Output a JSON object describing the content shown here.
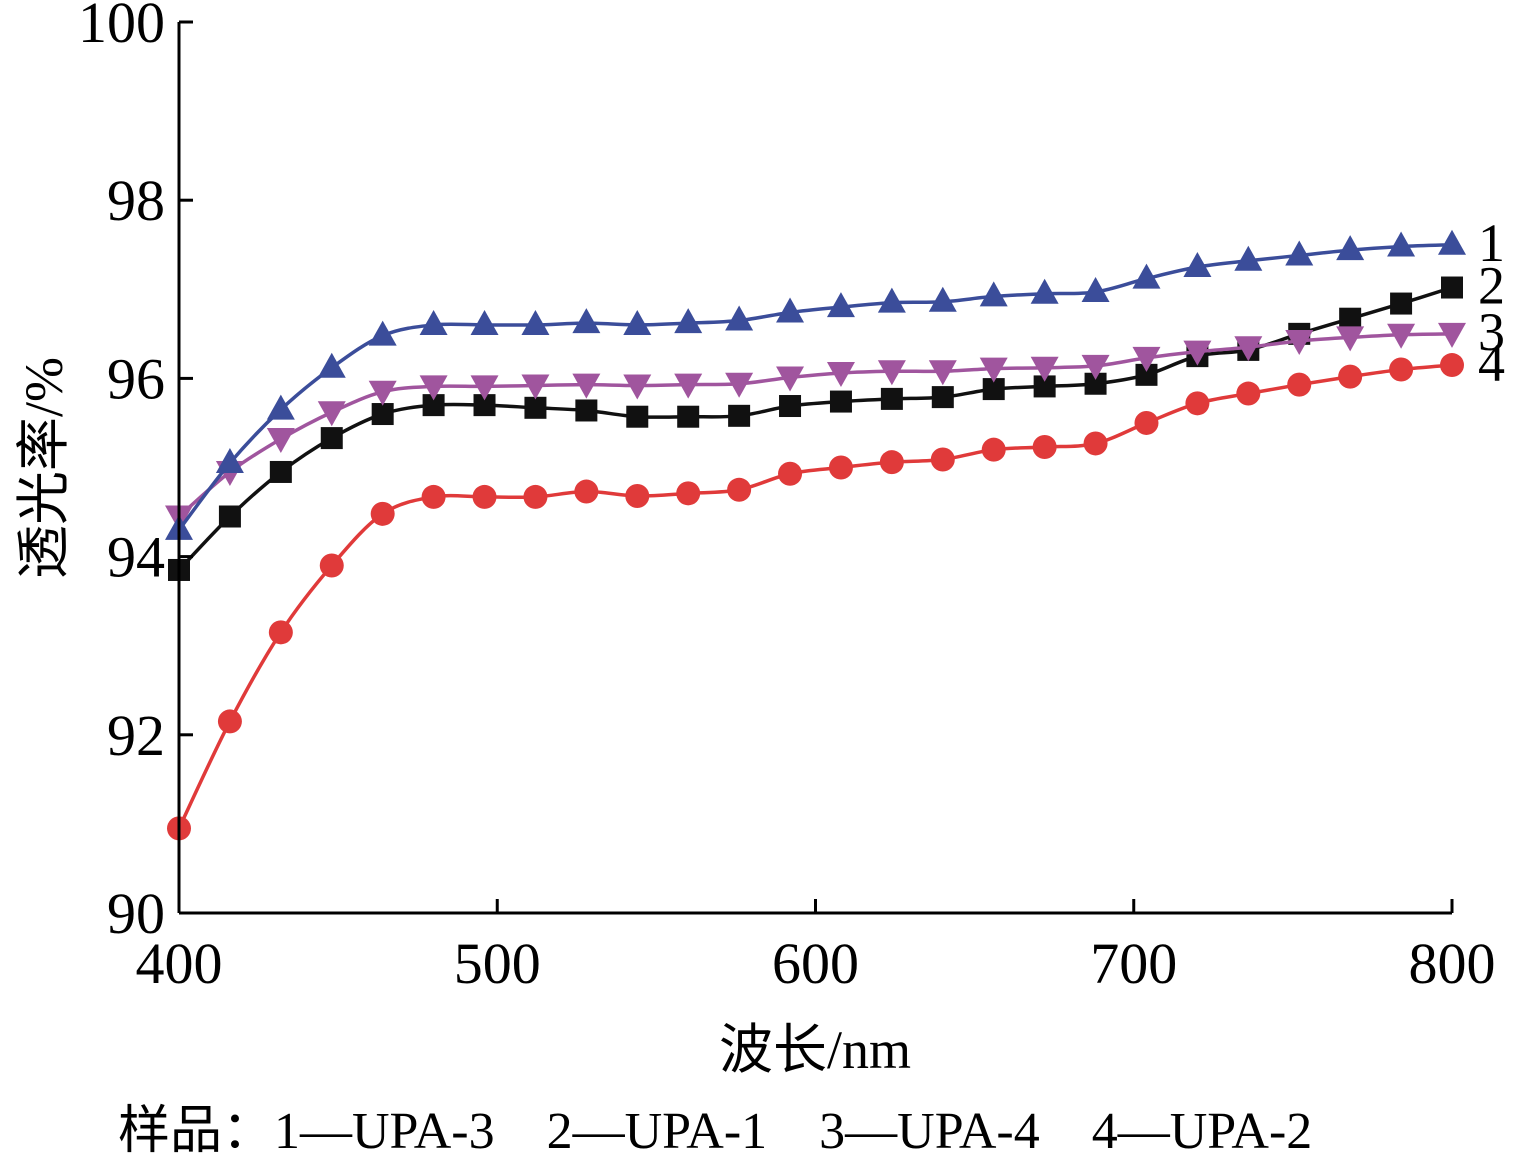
{
  "chart_data": {
    "type": "line",
    "xlabel": "波长/nm",
    "ylabel": "透光率/%",
    "xlim": [
      400,
      800
    ],
    "ylim": [
      90,
      100
    ],
    "x_ticks": [
      "400",
      "500",
      "600",
      "700",
      "800"
    ],
    "y_ticks": [
      "90",
      "92",
      "94",
      "96",
      "98",
      "100"
    ],
    "grid": false,
    "x": [
      400,
      416,
      432,
      448,
      464,
      480,
      496,
      512,
      528,
      544,
      560,
      576,
      592,
      608,
      624,
      640,
      656,
      672,
      688,
      704,
      720,
      736,
      752,
      768,
      784,
      800
    ],
    "series": [
      {
        "label": "1",
        "color": "#3b4d9a",
        "marker": "triangle-up",
        "values": [
          94.3,
          95.05,
          95.65,
          96.12,
          96.48,
          96.6,
          96.6,
          96.6,
          96.62,
          96.6,
          96.62,
          96.65,
          96.74,
          96.8,
          96.85,
          96.86,
          96.92,
          96.95,
          96.97,
          97.12,
          97.25,
          97.32,
          97.38,
          97.44,
          97.48,
          97.5
        ]
      },
      {
        "label": "2",
        "color": "#111111",
        "marker": "square",
        "values": [
          93.85,
          94.45,
          94.95,
          95.33,
          95.6,
          95.7,
          95.7,
          95.67,
          95.64,
          95.57,
          95.57,
          95.58,
          95.69,
          95.74,
          95.77,
          95.79,
          95.88,
          95.91,
          95.94,
          96.04,
          96.25,
          96.32,
          96.5,
          96.67,
          96.84,
          97.02
        ]
      },
      {
        "label": "3",
        "color": "#a0559e",
        "marker": "triangle-down",
        "values": [
          94.45,
          94.95,
          95.32,
          95.62,
          95.85,
          95.91,
          95.91,
          95.92,
          95.93,
          95.92,
          95.93,
          95.94,
          96.01,
          96.06,
          96.08,
          96.08,
          96.11,
          96.12,
          96.14,
          96.23,
          96.3,
          96.35,
          96.42,
          96.46,
          96.49,
          96.5
        ]
      },
      {
        "label": "4",
        "color": "#e03a3a",
        "marker": "circle",
        "values": [
          90.95,
          92.15,
          93.15,
          93.9,
          94.48,
          94.67,
          94.67,
          94.67,
          94.73,
          94.68,
          94.71,
          94.75,
          94.93,
          95.0,
          95.06,
          95.09,
          95.2,
          95.23,
          95.27,
          95.5,
          95.72,
          95.83,
          95.93,
          96.02,
          96.1,
          96.15
        ]
      }
    ],
    "caption": "样品：1—UPA-3　2—UPA-1　3—UPA-4　4—UPA-2"
  }
}
